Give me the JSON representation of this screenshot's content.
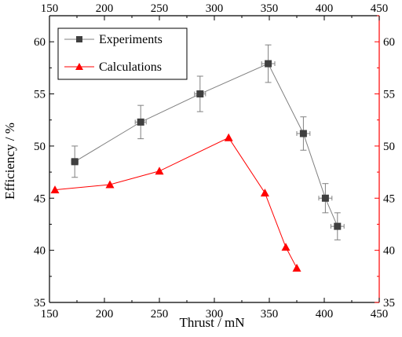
{
  "chart_data": {
    "type": "line",
    "xlabel": "Thrust / mN",
    "ylabel": "Efficiency / %",
    "xlim": [
      150,
      450
    ],
    "ylim": [
      35,
      62.5
    ],
    "x_ticks": [
      150,
      200,
      250,
      300,
      350,
      400,
      450
    ],
    "y_ticks": [
      35,
      40,
      45,
      50,
      55,
      60
    ],
    "grid": false,
    "legend_position": "top-left",
    "axis_colors": {
      "left": "#000000",
      "bottom": "#000000",
      "top": "#000000",
      "right": "#ff0000"
    },
    "series": [
      {
        "name": "Experiments",
        "color": "#808080",
        "marker": "square",
        "marker_color": "#404040",
        "points": [
          {
            "x": 173,
            "y": 48.5,
            "xerr": 3,
            "yerr": 1.5
          },
          {
            "x": 233,
            "y": 52.3,
            "xerr": 5,
            "yerr": 1.6
          },
          {
            "x": 287,
            "y": 55.0,
            "xerr": 5,
            "yerr": 1.7
          },
          {
            "x": 349,
            "y": 57.9,
            "xerr": 6,
            "yerr": 1.8
          },
          {
            "x": 381,
            "y": 51.2,
            "xerr": 6,
            "yerr": 1.6
          },
          {
            "x": 401,
            "y": 45.0,
            "xerr": 6,
            "yerr": 1.4
          },
          {
            "x": 412,
            "y": 42.3,
            "xerr": 6,
            "yerr": 1.3
          }
        ]
      },
      {
        "name": "Calculations",
        "color": "#ff0000",
        "marker": "triangle",
        "marker_color": "#ff0000",
        "points": [
          {
            "x": 155,
            "y": 45.8
          },
          {
            "x": 205,
            "y": 46.3
          },
          {
            "x": 250,
            "y": 47.6
          },
          {
            "x": 313,
            "y": 50.8
          },
          {
            "x": 346,
            "y": 45.5
          },
          {
            "x": 365,
            "y": 40.3
          },
          {
            "x": 375,
            "y": 38.3
          }
        ]
      }
    ]
  }
}
